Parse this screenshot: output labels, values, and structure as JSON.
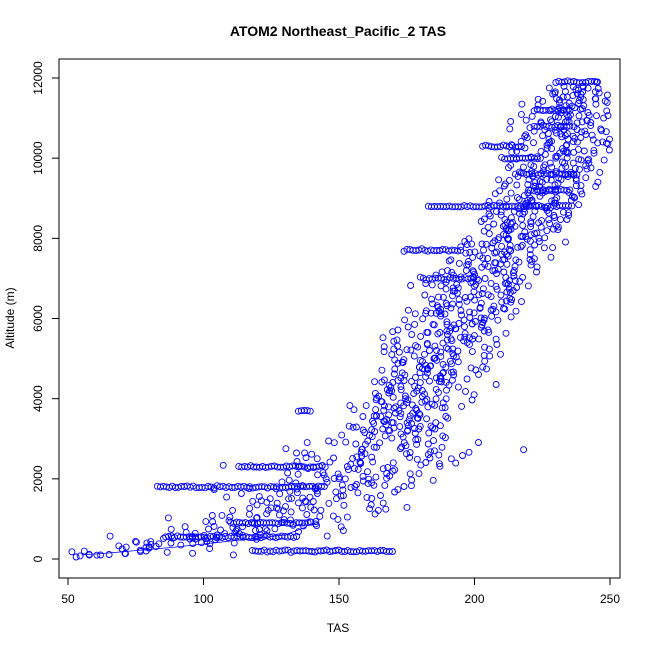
{
  "chart_data": {
    "type": "scatter",
    "title": "ATOM2 Northeast_Pacific_2 TAS",
    "xlabel": "TAS",
    "ylabel": "Altitude (m)",
    "xlim": [
      50,
      250
    ],
    "ylim": [
      0,
      12000
    ],
    "x_ticks": [
      50,
      100,
      150,
      200,
      250
    ],
    "y_ticks": [
      0,
      2000,
      4000,
      6000,
      8000,
      10000,
      12000
    ],
    "grid": false,
    "legend": "none",
    "marker": "open-circle",
    "color": "#0000ff",
    "trend_points": [
      [
        53,
        50
      ],
      [
        62,
        100
      ],
      [
        70,
        250
      ],
      [
        80,
        300
      ],
      [
        88,
        400
      ],
      [
        95,
        500
      ],
      [
        105,
        600
      ],
      [
        112,
        700
      ],
      [
        120,
        900
      ],
      [
        128,
        1100
      ],
      [
        135,
        1400
      ],
      [
        142,
        1700
      ],
      [
        150,
        2000
      ],
      [
        158,
        2400
      ],
      [
        165,
        2900
      ],
      [
        170,
        3400
      ],
      [
        175,
        3900
      ],
      [
        180,
        4400
      ],
      [
        185,
        5000
      ],
      [
        190,
        5600
      ],
      [
        195,
        6200
      ],
      [
        200,
        6800
      ],
      [
        205,
        7300
      ],
      [
        210,
        7800
      ],
      [
        215,
        8300
      ],
      [
        220,
        8800
      ],
      [
        225,
        9400
      ],
      [
        230,
        10000
      ],
      [
        233,
        10700
      ],
      [
        236,
        11300
      ],
      [
        240,
        11800
      ],
      [
        245,
        11900
      ]
    ],
    "plateaus": [
      {
        "y": 200,
        "x_min": 118,
        "x_max": 170
      },
      {
        "y": 550,
        "x_min": 86,
        "x_max": 135
      },
      {
        "y": 900,
        "x_min": 110,
        "x_max": 140
      },
      {
        "y": 1800,
        "x_min": 83,
        "x_max": 145
      },
      {
        "y": 2300,
        "x_min": 113,
        "x_max": 145
      },
      {
        "y": 3700,
        "x_min": 135,
        "x_max": 140
      },
      {
        "y": 7000,
        "x_min": 180,
        "x_max": 200
      },
      {
        "y": 7700,
        "x_min": 174,
        "x_max": 195
      },
      {
        "y": 8800,
        "x_min": 183,
        "x_max": 235
      },
      {
        "y": 9200,
        "x_min": 222,
        "x_max": 236
      },
      {
        "y": 9600,
        "x_min": 218,
        "x_max": 238
      },
      {
        "y": 10000,
        "x_min": 210,
        "x_max": 225
      },
      {
        "y": 10300,
        "x_min": 203,
        "x_max": 218
      },
      {
        "y": 10800,
        "x_min": 222,
        "x_max": 236
      },
      {
        "y": 11200,
        "x_min": 222,
        "x_max": 236
      },
      {
        "y": 11900,
        "x_min": 230,
        "x_max": 246
      }
    ],
    "trace_line": [
      [
        55,
        100
      ],
      [
        65,
        150
      ],
      [
        90,
        300
      ],
      [
        130,
        600
      ],
      [
        138,
        800
      ]
    ]
  }
}
